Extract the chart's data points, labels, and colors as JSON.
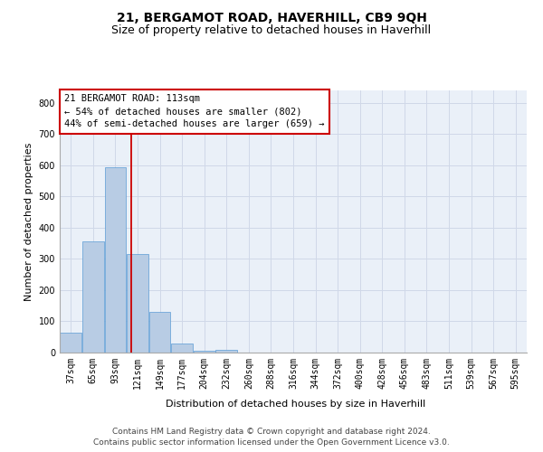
{
  "title": "21, BERGAMOT ROAD, HAVERHILL, CB9 9QH",
  "subtitle": "Size of property relative to detached houses in Haverhill",
  "xlabel": "Distribution of detached houses by size in Haverhill",
  "ylabel": "Number of detached properties",
  "footer1": "Contains HM Land Registry data © Crown copyright and database right 2024.",
  "footer2": "Contains public sector information licensed under the Open Government Licence v3.0.",
  "bin_labels": [
    "37sqm",
    "65sqm",
    "93sqm",
    "121sqm",
    "149sqm",
    "177sqm",
    "204sqm",
    "232sqm",
    "260sqm",
    "288sqm",
    "316sqm",
    "344sqm",
    "372sqm",
    "400sqm",
    "428sqm",
    "456sqm",
    "483sqm",
    "511sqm",
    "539sqm",
    "567sqm",
    "595sqm"
  ],
  "bar_values": [
    65,
    355,
    595,
    315,
    130,
    28,
    5,
    10,
    0,
    0,
    0,
    0,
    0,
    0,
    0,
    0,
    0,
    0,
    0,
    0,
    0
  ],
  "bar_color": "#b8cce4",
  "bar_edgecolor": "#5b9bd5",
  "grid_color": "#d0d8e8",
  "background_color": "#eaf0f8",
  "ylim": [
    0,
    840
  ],
  "yticks": [
    0,
    100,
    200,
    300,
    400,
    500,
    600,
    700,
    800
  ],
  "red_line_x": 2.714,
  "annotation_line1": "21 BERGAMOT ROAD: 113sqm",
  "annotation_line2": "← 54% of detached houses are smaller (802)",
  "annotation_line3": "44% of semi-detached houses are larger (659) →",
  "annotation_box_color": "#ffffff",
  "annotation_border_color": "#cc0000",
  "title_fontsize": 10,
  "subtitle_fontsize": 9,
  "axis_label_fontsize": 8,
  "tick_fontsize": 7,
  "annotation_fontsize": 7.5,
  "footer_fontsize": 6.5
}
